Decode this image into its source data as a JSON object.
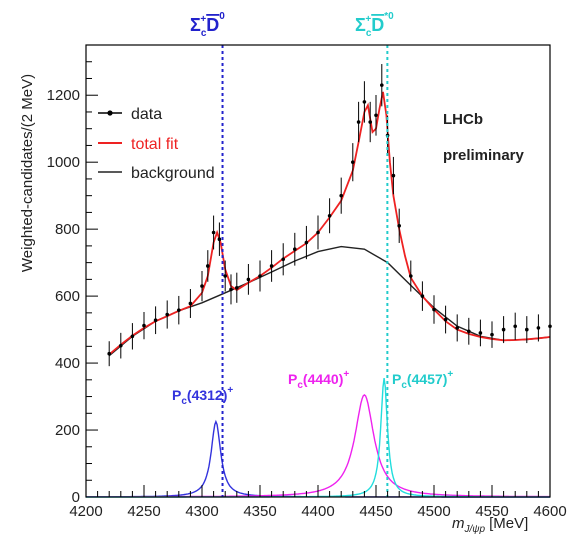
{
  "chart_data": {
    "type": "line",
    "xlabel_main": "m",
    "xlabel_sub": "J/ψp",
    "xlabel_unit": "[MeV]",
    "ylabel": "Weighted-candidates/(2 MeV)",
    "xlim": [
      4200,
      4600
    ],
    "ylim": [
      0,
      1350
    ],
    "x_ticks": [
      4200,
      4250,
      4300,
      4350,
      4400,
      4450,
      4500,
      4550,
      4600
    ],
    "y_ticks": [
      0,
      200,
      400,
      600,
      800,
      1000,
      1200
    ],
    "grid": false,
    "legend_position": "top-left",
    "legend": [
      {
        "label": "data",
        "color": "#000000",
        "style": "marker-line"
      },
      {
        "label": "total fit",
        "color": "#ee2222",
        "style": "line"
      },
      {
        "label": "background",
        "color": "#222222",
        "style": "line"
      }
    ],
    "annotations": {
      "experiment": "LHCb",
      "status": "preliminary"
    },
    "thresholds": [
      {
        "label_main": "Σ",
        "label_sub": "c",
        "label_sup": "+",
        "label_meson": "D",
        "label_meson_sup": "0",
        "x": 4317.7,
        "color": "#2222cc"
      },
      {
        "label_main": "Σ",
        "label_sub": "c",
        "label_sup": "+",
        "label_meson": "D",
        "label_meson_sup": "*0",
        "x": 4459.8,
        "color": "#22cccc"
      }
    ],
    "peaks": [
      {
        "label_main": "P",
        "label_sub": "c",
        "label_mass": "(4312)",
        "label_sup": "+",
        "mass": 4312,
        "width": 10,
        "height": 225,
        "color": "#3333dd"
      },
      {
        "label_main": "P",
        "label_sub": "c",
        "label_mass": "(4440)",
        "label_sup": "+",
        "mass": 4440,
        "width": 20,
        "height": 305,
        "color": "#ee22ee"
      },
      {
        "label_main": "P",
        "label_sub": "c",
        "label_mass": "(4457)",
        "label_sup": "+",
        "mass": 4457,
        "width": 7,
        "height": 355,
        "color": "#22dddd"
      }
    ],
    "background": {
      "x": [
        4220,
        4240,
        4260,
        4280,
        4300,
        4320,
        4340,
        4360,
        4380,
        4400,
        4420,
        4440,
        4460,
        4480,
        4500,
        4520,
        4540,
        4560,
        4580,
        4600
      ],
      "y": [
        422,
        480,
        525,
        556,
        580,
        610,
        640,
        672,
        705,
        733,
        748,
        740,
        700,
        632,
        565,
        510,
        480,
        468,
        470,
        478
      ]
    },
    "data_points": {
      "x": [
        4220,
        4230,
        4240,
        4250,
        4260,
        4270,
        4280,
        4290,
        4300,
        4305,
        4310,
        4315,
        4320,
        4325,
        4330,
        4340,
        4350,
        4360,
        4370,
        4380,
        4390,
        4400,
        4410,
        4420,
        4430,
        4435,
        4440,
        4445,
        4450,
        4455,
        4460,
        4465,
        4470,
        4480,
        4490,
        4500,
        4510,
        4520,
        4530,
        4540,
        4550,
        4560,
        4570,
        4580,
        4590,
        4600
      ],
      "y": [
        428,
        452,
        480,
        512,
        528,
        545,
        558,
        578,
        630,
        690,
        790,
        770,
        660,
        620,
        625,
        650,
        660,
        690,
        710,
        740,
        760,
        790,
        840,
        900,
        1000,
        1120,
        1180,
        1120,
        1140,
        1230,
        1080,
        960,
        810,
        660,
        600,
        560,
        530,
        505,
        495,
        490,
        485,
        500,
        510,
        500,
        505,
        510
      ]
    },
    "total_fit": {
      "x": [
        4220,
        4230,
        4240,
        4250,
        4260,
        4270,
        4280,
        4290,
        4300,
        4305,
        4310,
        4313,
        4316,
        4320,
        4325,
        4330,
        4340,
        4350,
        4360,
        4370,
        4380,
        4390,
        4400,
        4410,
        4420,
        4430,
        4435,
        4440,
        4443,
        4447,
        4450,
        4453,
        4456,
        4459,
        4462,
        4465,
        4470,
        4475,
        4480,
        4490,
        4500,
        4510,
        4520,
        4530,
        4540,
        4550,
        4560,
        4570,
        4580,
        4590,
        4600
      ],
      "y": [
        426,
        455,
        482,
        505,
        525,
        540,
        556,
        570,
        610,
        660,
        760,
        790,
        760,
        680,
        630,
        618,
        640,
        660,
        685,
        712,
        735,
        758,
        790,
        835,
        885,
        975,
        1060,
        1150,
        1170,
        1090,
        1100,
        1160,
        1210,
        1140,
        1000,
        900,
        800,
        720,
        655,
        600,
        560,
        525,
        500,
        487,
        478,
        472,
        468,
        469,
        471,
        474,
        478
      ]
    }
  }
}
